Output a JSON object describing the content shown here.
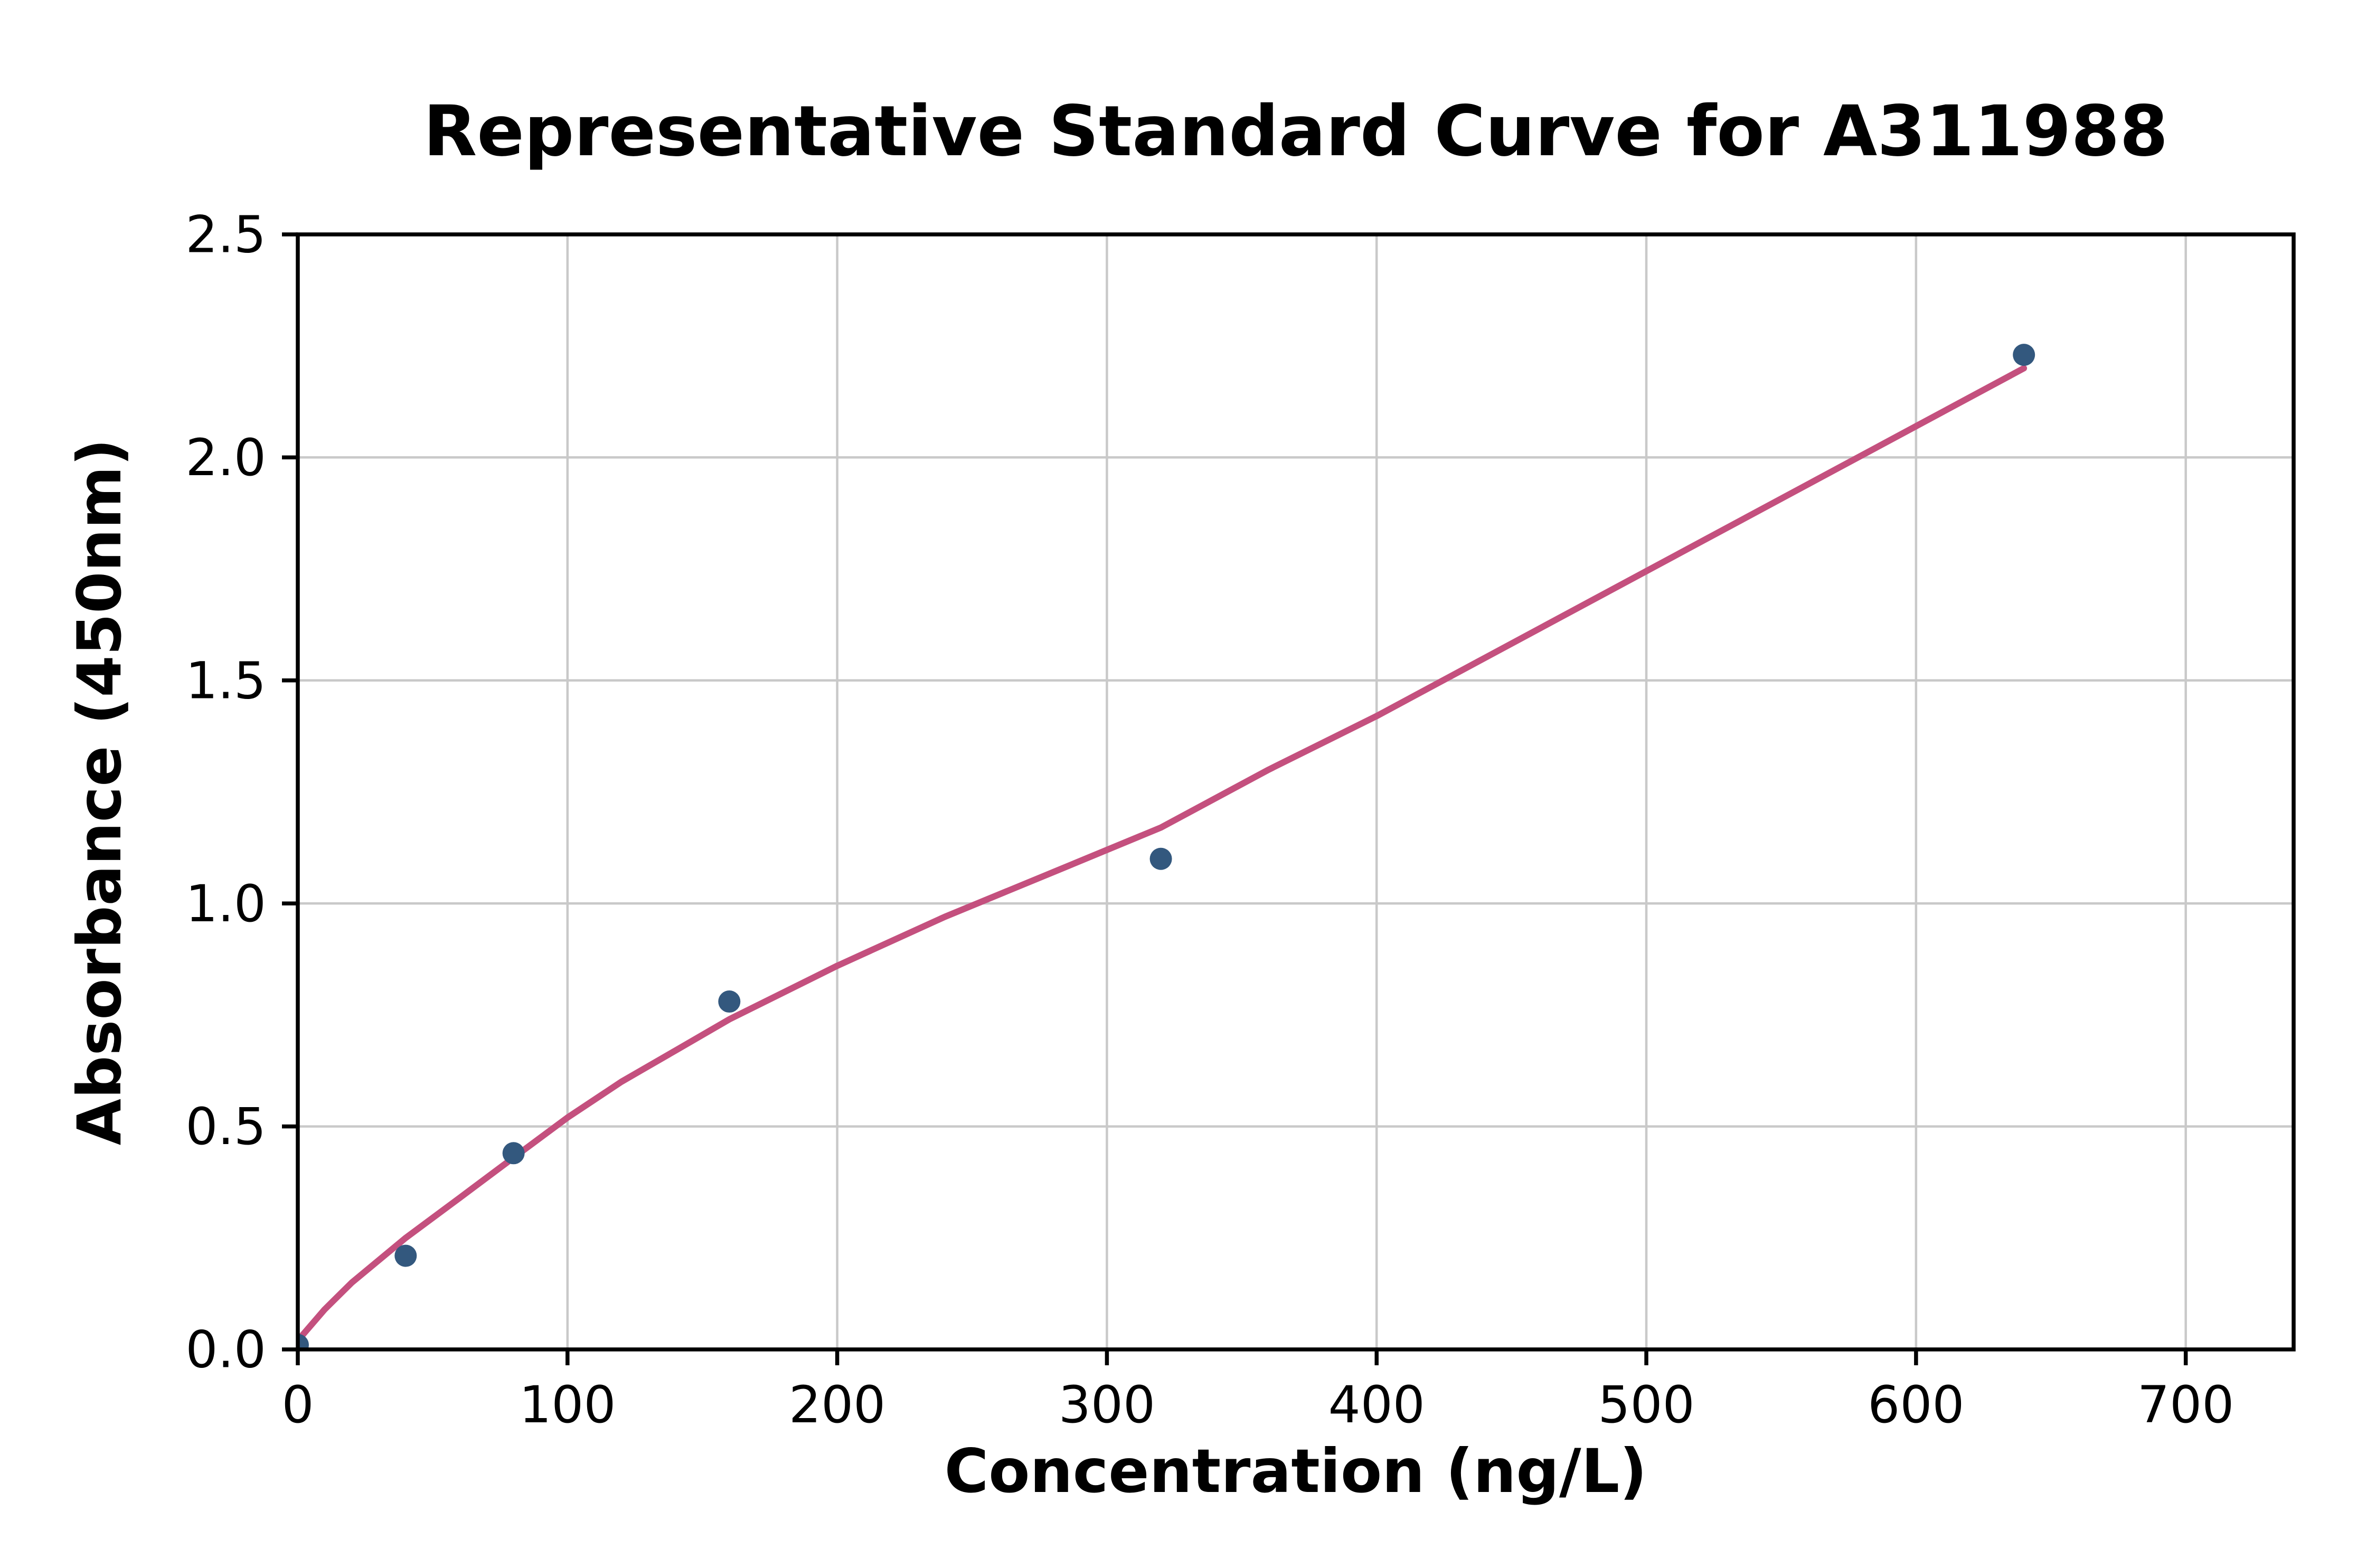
{
  "figure": {
    "background": "#ffffff"
  },
  "chart_data": {
    "type": "scatter",
    "title": "Representative Standard Curve for A311988",
    "xlabel": "Concentration (ng/L)",
    "ylabel": "Absorbance (450nm)",
    "xlim": [
      0,
      740
    ],
    "ylim": [
      0,
      2.5
    ],
    "grid": true,
    "legend": "none",
    "colors": {
      "grid": "#c9c9c9",
      "spine": "#000000",
      "text": "#000000",
      "point": "#33587e",
      "curve": "#c4507e"
    },
    "xticks": {
      "values": [
        0,
        100,
        200,
        300,
        400,
        500,
        600,
        700
      ],
      "labels": [
        "0",
        "100",
        "200",
        "300",
        "400",
        "500",
        "600",
        "700"
      ]
    },
    "yticks": {
      "values": [
        0,
        0.5,
        1.0,
        1.5,
        2.0,
        2.5
      ],
      "labels": [
        "0.0",
        "0.5",
        "1.0",
        "1.5",
        "2.0",
        "2.5"
      ]
    },
    "series": [
      {
        "name": "fit-curve",
        "type": "line",
        "color": "#c4507e",
        "width": 4,
        "points": [
          [
            0,
            0.02
          ],
          [
            10,
            0.09
          ],
          [
            20,
            0.15
          ],
          [
            40,
            0.25
          ],
          [
            60,
            0.34
          ],
          [
            80,
            0.43
          ],
          [
            100,
            0.52
          ],
          [
            120,
            0.6
          ],
          [
            140,
            0.67
          ],
          [
            160,
            0.74
          ],
          [
            200,
            0.86
          ],
          [
            240,
            0.97
          ],
          [
            280,
            1.07
          ],
          [
            320,
            1.17
          ],
          [
            360,
            1.3
          ],
          [
            400,
            1.42
          ],
          [
            440,
            1.55
          ],
          [
            480,
            1.68
          ],
          [
            520,
            1.81
          ],
          [
            560,
            1.94
          ],
          [
            600,
            2.07
          ],
          [
            640,
            2.2
          ]
        ]
      },
      {
        "name": "standard-points",
        "type": "scatter",
        "color": "#33587e",
        "marker_radius": 7,
        "points": [
          [
            0,
            0.01
          ],
          [
            40,
            0.21
          ],
          [
            80,
            0.44
          ],
          [
            160,
            0.78
          ],
          [
            320,
            1.1
          ],
          [
            640,
            2.23
          ]
        ]
      }
    ]
  }
}
